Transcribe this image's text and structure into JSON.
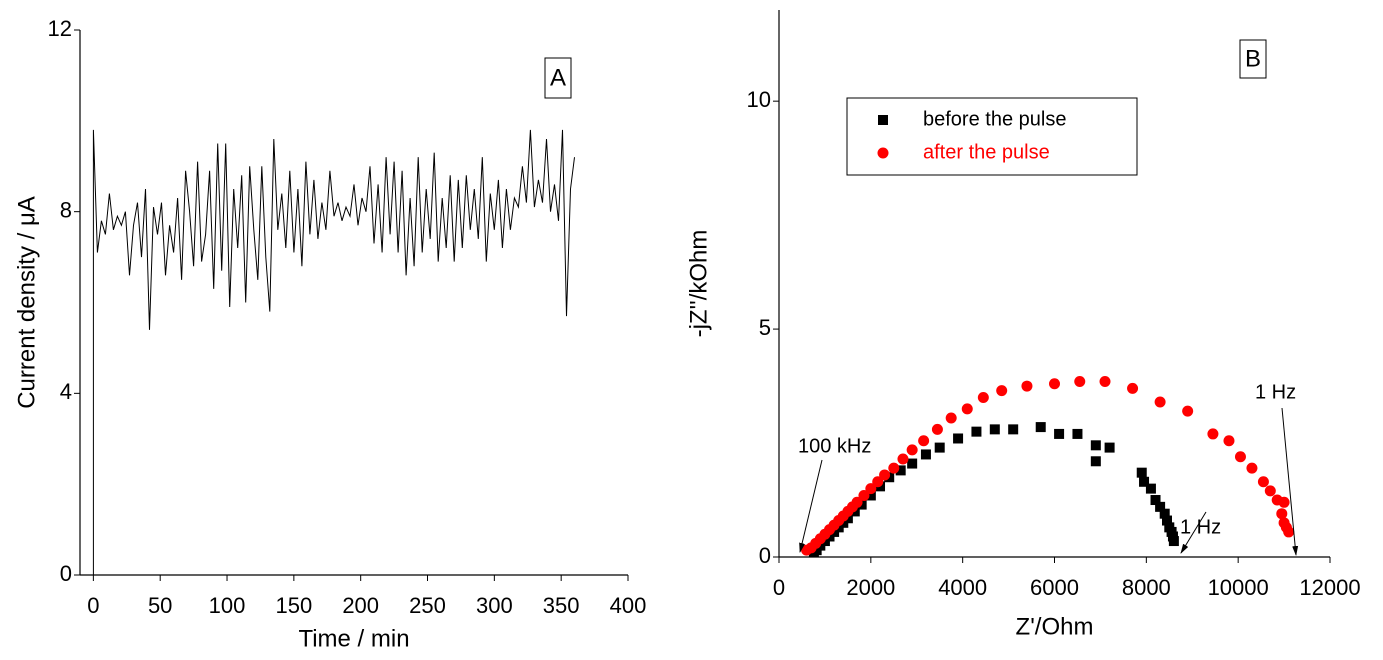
{
  "chart_data": [
    {
      "type": "line",
      "label": "A",
      "x_label": "Time / min",
      "y_label": "Current density / μA",
      "xlim": [
        -10,
        400
      ],
      "xticks": [
        0,
        50,
        100,
        150,
        200,
        250,
        300,
        350,
        400
      ],
      "ylim": [
        0,
        12
      ],
      "yticks": [
        0,
        4,
        8,
        12
      ],
      "series": [
        {
          "color": "#000000",
          "x": [
            0,
            0,
            3,
            6,
            9,
            12,
            15,
            18,
            21,
            24,
            27,
            30,
            33,
            36,
            39,
            42,
            45,
            48,
            51,
            54,
            57,
            60,
            63,
            66,
            69,
            72,
            75,
            78,
            81,
            84,
            87,
            90,
            93,
            96,
            99,
            102,
            105,
            108,
            111,
            114,
            117,
            120,
            123,
            126,
            129,
            132,
            135,
            138,
            141,
            144,
            147,
            150,
            153,
            156,
            159,
            162,
            165,
            168,
            171,
            174,
            177,
            180,
            183,
            186,
            189,
            192,
            195,
            198,
            201,
            204,
            207,
            210,
            213,
            216,
            219,
            222,
            225,
            228,
            231,
            234,
            237,
            240,
            243,
            246,
            249,
            252,
            255,
            258,
            261,
            264,
            267,
            270,
            273,
            276,
            279,
            282,
            285,
            288,
            291,
            294,
            297,
            300,
            303,
            306,
            309,
            312,
            315,
            318,
            321,
            324,
            327,
            330,
            333,
            336,
            339,
            342,
            345,
            348,
            351,
            354,
            357,
            360
          ],
          "values": [
            0,
            9.8,
            7.1,
            7.8,
            7.5,
            8.4,
            7.6,
            7.9,
            7.7,
            8.0,
            6.6,
            7.7,
            8.2,
            7.0,
            8.5,
            5.4,
            8.1,
            7.5,
            8.2,
            6.6,
            7.7,
            7.1,
            8.3,
            6.5,
            8.9,
            8.0,
            6.8,
            9.1,
            6.9,
            7.5,
            8.9,
            6.3,
            9.5,
            6.7,
            9.5,
            5.9,
            8.5,
            7.2,
            8.8,
            6.0,
            9.0,
            7.6,
            6.5,
            9.0,
            7.0,
            5.8,
            9.6,
            7.6,
            8.4,
            7.2,
            8.9,
            7.1,
            8.5,
            6.8,
            9.1,
            7.5,
            8.7,
            7.4,
            8.2,
            7.6,
            8.9,
            7.9,
            8.2,
            7.8,
            8.1,
            7.9,
            8.6,
            7.7,
            8.3,
            8.0,
            9.0,
            7.3,
            8.6,
            7.1,
            9.2,
            7.5,
            9.1,
            7.1,
            8.9,
            6.6,
            8.3,
            6.8,
            9.2,
            7.1,
            8.5,
            7.4,
            9.3,
            6.9,
            8.3,
            7.2,
            8.8,
            6.9,
            8.7,
            7.2,
            8.8,
            7.6,
            8.5,
            7.4,
            9.2,
            6.9,
            8.4,
            7.6,
            8.7,
            7.2,
            8.5,
            7.6,
            8.3,
            8.1,
            9.0,
            8.2,
            9.8,
            8.1,
            8.7,
            8.2,
            9.6,
            8.0,
            8.6,
            7.8,
            9.8,
            5.7,
            8.5,
            9.2
          ]
        }
      ]
    },
    {
      "type": "scatter",
      "label": "B",
      "x_label": "Z'/Ohm",
      "y_label": "-jZ''/kOhm",
      "xlim": [
        0,
        12000
      ],
      "xticks": [
        0,
        2000,
        4000,
        6000,
        8000,
        10000,
        12000
      ],
      "ylim": [
        0,
        12
      ],
      "yticks": [
        0,
        5,
        10
      ],
      "annotations": [
        "100 kHz",
        "1 Hz",
        "1 Hz"
      ],
      "series": [
        {
          "name": "before the pulse",
          "color": "#000000",
          "marker": "square",
          "x": [
            760,
            820,
            900,
            1000,
            1100,
            1200,
            1300,
            1400,
            1500,
            1650,
            1800,
            2000,
            2200,
            2400,
            2650,
            2900,
            3200,
            3500,
            3900,
            4300,
            4700,
            5100,
            5700,
            6100,
            6500,
            6900,
            6900,
            7200,
            7900,
            7950,
            8100,
            8200,
            8300,
            8400,
            8450,
            8500,
            8550,
            8580,
            8600
          ],
          "values": [
            0.1,
            0.15,
            0.25,
            0.35,
            0.45,
            0.55,
            0.65,
            0.75,
            0.85,
            1.0,
            1.15,
            1.35,
            1.55,
            1.75,
            1.9,
            2.05,
            2.25,
            2.4,
            2.6,
            2.75,
            2.8,
            2.8,
            2.85,
            2.7,
            2.7,
            2.45,
            2.1,
            2.4,
            1.85,
            1.65,
            1.5,
            1.25,
            1.1,
            0.95,
            0.8,
            0.65,
            0.55,
            0.45,
            0.35
          ]
        },
        {
          "name": "after the pulse",
          "color": "#ff0000",
          "marker": "circle",
          "x": [
            600,
            700,
            800,
            900,
            1000,
            1100,
            1200,
            1300,
            1400,
            1500,
            1600,
            1700,
            1850,
            2000,
            2150,
            2300,
            2500,
            2700,
            2900,
            3150,
            3450,
            3750,
            4100,
            4450,
            4850,
            5400,
            6000,
            6550,
            7100,
            7700,
            8300,
            8900,
            9450,
            9800,
            10050,
            10300,
            10550,
            10700,
            10850,
            11000,
            10950,
            11000,
            11050,
            11100
          ],
          "values": [
            0.15,
            0.2,
            0.3,
            0.4,
            0.5,
            0.6,
            0.7,
            0.8,
            0.9,
            1.0,
            1.1,
            1.2,
            1.35,
            1.5,
            1.65,
            1.8,
            1.95,
            2.15,
            2.35,
            2.55,
            2.8,
            3.05,
            3.25,
            3.5,
            3.65,
            3.75,
            3.8,
            3.85,
            3.85,
            3.7,
            3.4,
            3.2,
            2.7,
            2.55,
            2.2,
            1.95,
            1.65,
            1.45,
            1.25,
            1.2,
            0.95,
            0.75,
            0.65,
            0.55
          ]
        }
      ]
    }
  ]
}
